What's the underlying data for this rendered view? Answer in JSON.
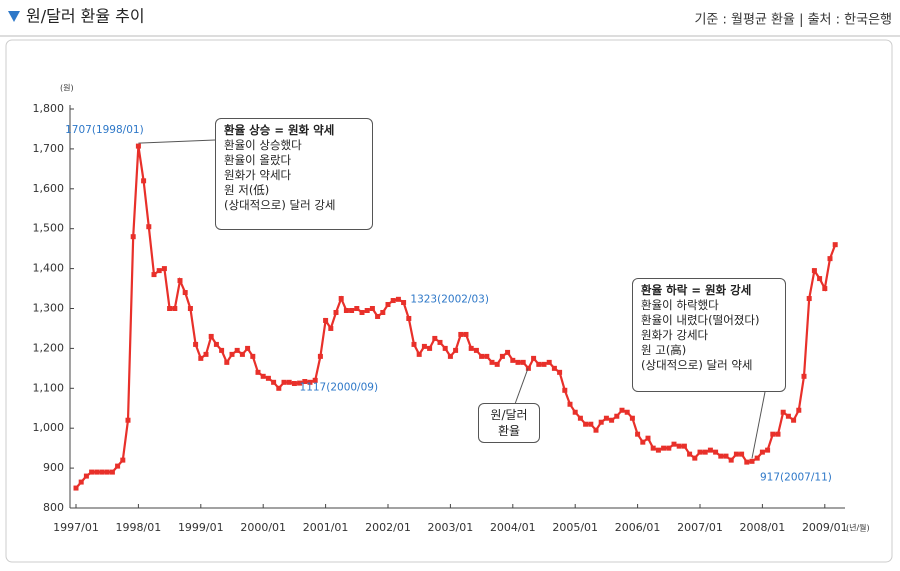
{
  "chart_data": {
    "type": "line",
    "title": "원/달러 환율 추이",
    "source": "기준 : 월평균 환율 | 출처 : 한국은행",
    "y_unit": "(원)",
    "x_unit": "(년/월)",
    "categories": [
      "1997/01",
      null,
      null,
      null,
      null,
      null,
      null,
      null,
      null,
      null,
      null,
      null,
      "1998/01",
      null,
      null,
      null,
      null,
      null,
      null,
      null,
      null,
      null,
      null,
      null,
      "1999/01",
      null,
      null,
      null,
      null,
      null,
      null,
      null,
      null,
      null,
      null,
      null,
      "2000/01",
      null,
      null,
      null,
      null,
      null,
      null,
      null,
      null,
      null,
      null,
      null,
      "2001/01",
      null,
      null,
      null,
      null,
      null,
      null,
      null,
      null,
      null,
      null,
      null,
      "2002/01",
      null,
      null,
      null,
      null,
      null,
      null,
      null,
      null,
      null,
      null,
      null,
      "2003/01",
      null,
      null,
      null,
      null,
      null,
      null,
      null,
      null,
      null,
      null,
      null,
      "2004/01",
      null,
      null,
      null,
      null,
      null,
      null,
      null,
      null,
      null,
      null,
      null,
      "2005/01",
      null,
      null,
      null,
      null,
      null,
      null,
      null,
      null,
      null,
      null,
      null,
      "2006/01",
      null,
      null,
      null,
      null,
      null,
      null,
      null,
      null,
      null,
      null,
      null,
      "2007/01",
      null,
      null,
      null,
      null,
      null,
      null,
      null,
      null,
      null,
      null,
      null,
      "2008/01",
      null,
      null,
      null,
      null,
      null,
      null,
      null,
      null,
      null,
      null,
      null,
      "2009/01",
      null,
      null
    ],
    "series": [
      {
        "name": "원/달러 환율",
        "color": "#e8302a",
        "values": [
          850,
          865,
          880,
          890,
          890,
          890,
          890,
          890,
          905,
          920,
          1020,
          1480,
          1707,
          1620,
          1505,
          1385,
          1395,
          1400,
          1300,
          1300,
          1370,
          1340,
          1300,
          1210,
          1175,
          1185,
          1230,
          1210,
          1195,
          1165,
          1185,
          1195,
          1185,
          1200,
          1180,
          1140,
          1130,
          1125,
          1115,
          1100,
          1115,
          1115,
          1112,
          1113,
          1117,
          1115,
          1120,
          1180,
          1270,
          1250,
          1290,
          1325,
          1295,
          1295,
          1300,
          1290,
          1295,
          1300,
          1280,
          1290,
          1310,
          1320,
          1323,
          1315,
          1275,
          1210,
          1185,
          1205,
          1200,
          1225,
          1215,
          1200,
          1180,
          1195,
          1235,
          1235,
          1200,
          1195,
          1180,
          1180,
          1165,
          1160,
          1180,
          1190,
          1170,
          1165,
          1165,
          1150,
          1175,
          1160,
          1160,
          1165,
          1150,
          1140,
          1095,
          1060,
          1040,
          1025,
          1010,
          1010,
          995,
          1015,
          1025,
          1020,
          1030,
          1045,
          1040,
          1025,
          985,
          965,
          975,
          950,
          945,
          950,
          950,
          960,
          955,
          955,
          935,
          925,
          940,
          940,
          945,
          940,
          930,
          930,
          920,
          935,
          935,
          915,
          917,
          925,
          940,
          945,
          985,
          985,
          1040,
          1030,
          1020,
          1045,
          1130,
          1325,
          1395,
          1375,
          1350,
          1425,
          1460
        ]
      }
    ],
    "ylim": [
      800,
      1800
    ],
    "yticks": [
      800,
      900,
      {
        "value": 1000,
        "label": "1,000"
      },
      {
        "value": 1100,
        "label": "1,100"
      },
      {
        "value": 1200,
        "label": "1,200"
      },
      {
        "value": 1300,
        "label": "1,300"
      },
      {
        "value": 1400,
        "label": "1,400"
      },
      {
        "value": 1500,
        "label": "1,500"
      },
      {
        "value": 1600,
        "label": "1,600"
      },
      {
        "value": 1700,
        "label": "1,700"
      },
      {
        "value": 1800,
        "label": "1,800"
      }
    ],
    "grid": false,
    "annotations": [
      {
        "text": "1707(1998/01)",
        "index": 12
      },
      {
        "text": "1117(2000/09)",
        "index": 44
      },
      {
        "text": "1323(2002/03)",
        "index": 62
      },
      {
        "text": "917(2007/11)",
        "index": 130
      }
    ],
    "callouts": [
      {
        "title": "환율 상승 = 원화 약세",
        "lines": [
          "환율이 상승했다",
          "환율이 올랐다",
          "원화가 약세다",
          "원 저(低)",
          "(상대적으로) 달러 강세"
        ],
        "index": 12
      },
      {
        "title": "환율 하락 = 원화 강세",
        "lines": [
          "환율이 하락했다",
          "환율이 내렸다(떨어졌다)",
          "원화가 강세다",
          "원 고(高)",
          "(상대적으로) 달러 약세"
        ],
        "index": 130
      }
    ]
  }
}
